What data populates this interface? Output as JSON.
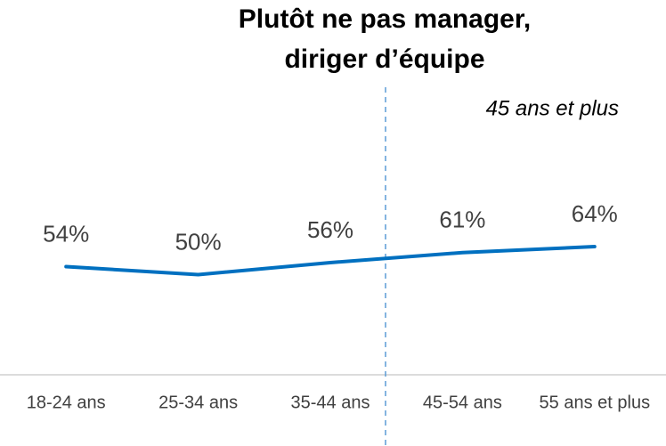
{
  "chart_data": {
    "type": "line",
    "title": [
      "Plutôt ne pas manager,",
      "diriger d’équipe"
    ],
    "annotation": "45 ans et plus",
    "categories": [
      "18-24 ans",
      "25-34 ans",
      "35-44 ans",
      "45-54 ans",
      "55 ans et plus"
    ],
    "series": [
      {
        "color": "#0070c0",
        "values": [
          54,
          50,
          56,
          61,
          64
        ],
        "value_labels": [
          "54%",
          "50%",
          "56%",
          "61%",
          "64%"
        ]
      }
    ],
    "ylim": [
      0,
      100
    ]
  }
}
